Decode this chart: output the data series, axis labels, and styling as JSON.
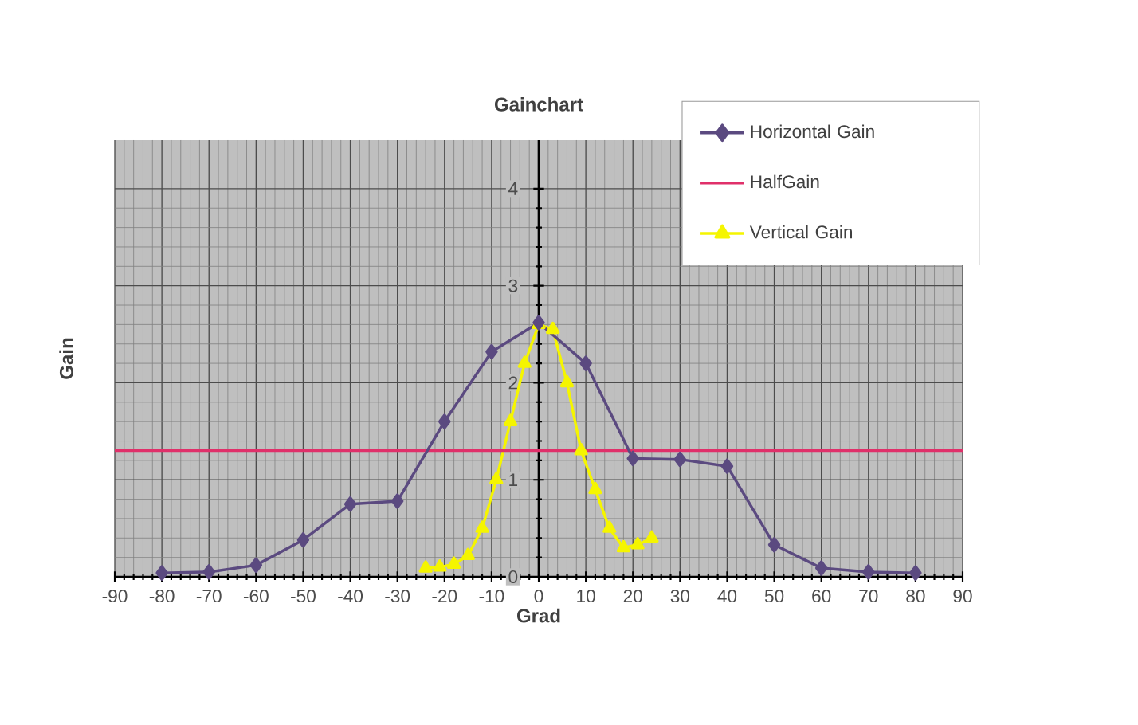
{
  "chart_data": {
    "type": "line",
    "title": "Gainchart",
    "xlabel": "Grad",
    "ylabel": "Gain",
    "xlim": [
      -90,
      90
    ],
    "xticks": [
      -90,
      -80,
      -70,
      -60,
      -50,
      -40,
      -30,
      -20,
      -10,
      0,
      10,
      20,
      30,
      40,
      50,
      60,
      70,
      80,
      90
    ],
    "ylim": [
      0,
      4.5
    ],
    "yticks": [
      0,
      1,
      2,
      3,
      4
    ],
    "grid": true,
    "legend": "top right",
    "line_style": "solid",
    "series": [
      {
        "name": "Horizontal Gain",
        "color": "#5b4a80",
        "marker": "diamond",
        "x": [
          -80,
          -70,
          -60,
          -50,
          -40,
          -30,
          -20,
          -10,
          0,
          10,
          20,
          30,
          40,
          50,
          60,
          70,
          80
        ],
        "values": [
          0.04,
          0.05,
          0.12,
          0.38,
          0.75,
          0.78,
          1.6,
          2.32,
          2.62,
          2.2,
          1.22,
          1.21,
          1.14,
          0.33,
          0.09,
          0.05,
          0.04
        ]
      },
      {
        "name": "HalfGain",
        "color": "#e0306a",
        "marker": "none",
        "x": [
          -90,
          90
        ],
        "values": [
          1.3,
          1.3
        ]
      },
      {
        "name": "Vertical Gain",
        "color": "#f5f500",
        "marker": "triangle",
        "x": [
          -24,
          -21,
          -18,
          -15,
          -12,
          -9,
          -6,
          -3,
          0,
          3,
          6,
          9,
          12,
          15,
          18,
          21,
          24
        ],
        "values": [
          0.09,
          0.1,
          0.13,
          0.22,
          0.5,
          1.0,
          1.6,
          2.2,
          2.6,
          2.55,
          2.0,
          1.3,
          0.9,
          0.5,
          0.3,
          0.33,
          0.4
        ]
      }
    ]
  }
}
